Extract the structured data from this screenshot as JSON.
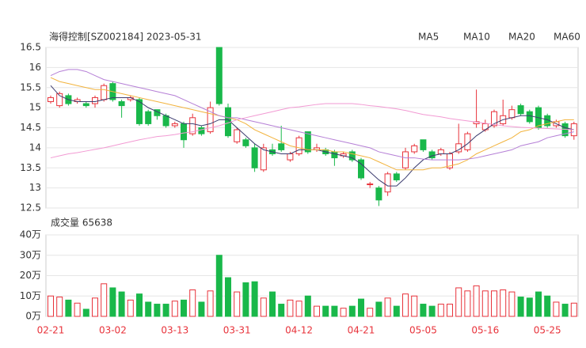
{
  "chart_data": [
    {
      "type": "candlestick",
      "title": "海得控制[SZ002184] 2023-05-31",
      "up_color": "#e8333b",
      "down_color": "#19b84a",
      "open": [
        15.15,
        15.05,
        15.3,
        15.15,
        15.1,
        15.1,
        15.2,
        15.6,
        15.15,
        15.2,
        15.2,
        14.9,
        14.95,
        14.8,
        14.55,
        14.6,
        14.35,
        14.5,
        14.4,
        16.5,
        15.0,
        14.15,
        14.2,
        14.0,
        13.45,
        13.95,
        14.1,
        13.7,
        13.85,
        14.4,
        13.95,
        13.95,
        13.9,
        13.8,
        13.9,
        13.7,
        13.1,
        13.0,
        12.9,
        13.35,
        13.5,
        13.9,
        14.2,
        13.9,
        13.85,
        13.5,
        13.9,
        13.95,
        14.6,
        14.45,
        14.55,
        14.6,
        14.75,
        15.05,
        14.9,
        15.0,
        14.8,
        14.55,
        14.6,
        14.3
      ],
      "high": [
        15.3,
        15.4,
        15.35,
        15.25,
        15.15,
        15.3,
        15.6,
        15.65,
        15.2,
        15.3,
        15.25,
        14.95,
        14.95,
        14.85,
        14.65,
        14.65,
        14.85,
        14.55,
        15.15,
        16.5,
        15.1,
        14.5,
        14.25,
        14.1,
        14.1,
        14.1,
        14.55,
        13.9,
        14.3,
        14.4,
        14.1,
        14.0,
        13.95,
        13.9,
        13.95,
        13.75,
        13.15,
        13.05,
        13.4,
        13.4,
        14.0,
        14.1,
        14.2,
        13.95,
        14.0,
        13.9,
        14.6,
        14.4,
        15.45,
        14.7,
        14.95,
        15.2,
        15.05,
        15.1,
        14.95,
        15.05,
        14.85,
        14.7,
        14.65,
        14.65
      ],
      "low": [
        15.1,
        15.0,
        15.05,
        15.1,
        15.0,
        15.0,
        15.15,
        15.15,
        14.75,
        15.15,
        14.55,
        14.55,
        14.7,
        14.5,
        14.5,
        14.0,
        14.3,
        14.3,
        14.35,
        15.05,
        14.25,
        14.1,
        14.0,
        13.4,
        13.4,
        13.8,
        13.9,
        13.65,
        13.8,
        13.85,
        13.9,
        13.8,
        13.55,
        13.75,
        13.65,
        13.2,
        13.0,
        12.55,
        12.8,
        13.15,
        13.45,
        13.85,
        13.9,
        13.7,
        13.8,
        13.45,
        13.85,
        13.9,
        14.5,
        14.4,
        14.5,
        14.55,
        14.7,
        14.8,
        14.6,
        14.45,
        14.5,
        14.5,
        14.25,
        14.2
      ],
      "close": [
        15.25,
        15.35,
        15.1,
        15.2,
        15.05,
        15.25,
        15.55,
        15.2,
        15.05,
        15.25,
        14.6,
        14.6,
        14.8,
        14.55,
        14.6,
        14.2,
        14.75,
        14.35,
        15.0,
        15.1,
        14.3,
        14.45,
        14.05,
        13.5,
        14.0,
        13.85,
        13.95,
        13.85,
        14.25,
        13.9,
        14.0,
        13.85,
        13.75,
        13.85,
        13.7,
        13.25,
        13.1,
        12.7,
        13.35,
        13.2,
        13.9,
        14.05,
        13.95,
        13.75,
        13.95,
        13.85,
        14.1,
        14.35,
        14.65,
        14.6,
        14.9,
        14.8,
        14.95,
        14.85,
        14.65,
        14.5,
        14.55,
        14.65,
        14.3,
        14.6
      ],
      "series": [
        {
          "name": "MA5",
          "color": "#3b3b6e",
          "values": [
            15.55,
            15.3,
            15.2,
            15.15,
            15.15,
            15.15,
            15.2,
            15.25,
            15.25,
            15.25,
            15.15,
            15.0,
            14.9,
            14.8,
            14.7,
            14.6,
            14.6,
            14.55,
            14.6,
            14.7,
            14.7,
            14.5,
            14.3,
            14.1,
            13.95,
            13.9,
            13.85,
            13.85,
            13.95,
            13.95,
            13.95,
            13.9,
            13.85,
            13.8,
            13.75,
            13.6,
            13.4,
            13.2,
            13.05,
            13.05,
            13.25,
            13.5,
            13.7,
            13.8,
            13.85,
            13.85,
            13.95,
            14.1,
            14.3,
            14.45,
            14.6,
            14.7,
            14.75,
            14.8,
            14.8,
            14.75,
            14.7,
            14.6,
            14.5,
            14.45
          ]
        },
        {
          "name": "MA10",
          "color": "#f2b33d",
          "values": [
            15.75,
            15.65,
            15.6,
            15.55,
            15.5,
            15.45,
            15.45,
            15.4,
            15.35,
            15.3,
            15.25,
            15.2,
            15.15,
            15.1,
            15.05,
            15.0,
            14.95,
            14.9,
            14.85,
            14.8,
            14.75,
            14.7,
            14.6,
            14.45,
            14.35,
            14.25,
            14.15,
            14.05,
            14.0,
            13.95,
            13.95,
            13.95,
            13.9,
            13.9,
            13.85,
            13.8,
            13.75,
            13.65,
            13.55,
            13.45,
            13.45,
            13.45,
            13.45,
            13.5,
            13.5,
            13.55,
            13.6,
            13.7,
            13.85,
            13.95,
            14.05,
            14.15,
            14.25,
            14.4,
            14.45,
            14.55,
            14.6,
            14.65,
            14.7,
            14.7
          ]
        },
        {
          "name": "MA20",
          "color": "#b57fd6",
          "values": [
            15.8,
            15.9,
            15.95,
            15.95,
            15.9,
            15.8,
            15.7,
            15.65,
            15.6,
            15.55,
            15.5,
            15.45,
            15.4,
            15.35,
            15.3,
            15.2,
            15.1,
            15.0,
            14.9,
            14.8,
            14.75,
            14.75,
            14.7,
            14.65,
            14.6,
            14.55,
            14.5,
            14.45,
            14.4,
            14.35,
            14.3,
            14.25,
            14.2,
            14.15,
            14.1,
            14.05,
            14.0,
            13.9,
            13.85,
            13.8,
            13.75,
            13.75,
            13.72,
            13.7,
            13.7,
            13.7,
            13.7,
            13.72,
            13.75,
            13.8,
            13.85,
            13.9,
            13.95,
            14.05,
            14.1,
            14.15,
            14.25,
            14.3,
            14.35,
            14.4
          ]
        },
        {
          "name": "MA60",
          "color": "#f29ad3",
          "values": [
            13.75,
            13.8,
            13.85,
            13.88,
            13.92,
            13.96,
            14.0,
            14.05,
            14.1,
            14.15,
            14.2,
            14.24,
            14.28,
            14.3,
            14.33,
            14.37,
            14.4,
            14.45,
            14.5,
            14.55,
            14.62,
            14.7,
            14.75,
            14.8,
            14.85,
            14.9,
            14.95,
            15.0,
            15.02,
            15.05,
            15.08,
            15.1,
            15.1,
            15.1,
            15.1,
            15.08,
            15.05,
            15.03,
            15.0,
            14.97,
            14.93,
            14.88,
            14.83,
            14.8,
            14.77,
            14.73,
            14.7,
            14.67,
            14.64,
            14.61,
            14.58,
            14.55,
            14.53,
            14.51,
            14.5,
            14.49,
            14.48,
            14.47,
            14.46,
            14.45
          ]
        }
      ],
      "ylim": [
        12.5,
        16.5
      ],
      "yticks": [
        16.5,
        16,
        15.5,
        15,
        14.5,
        14,
        13.5,
        13,
        12.5
      ],
      "grid": true
    },
    {
      "type": "bar",
      "title": "成交量 65638",
      "categories": [
        "02-21",
        null,
        null,
        null,
        null,
        null,
        null,
        "03-02",
        null,
        null,
        null,
        null,
        null,
        null,
        "03-13",
        null,
        null,
        null,
        null,
        null,
        null,
        "03-31",
        null,
        null,
        null,
        null,
        null,
        null,
        "04-12",
        null,
        null,
        null,
        null,
        null,
        null,
        "04-21",
        null,
        null,
        null,
        null,
        null,
        null,
        "05-05",
        null,
        null,
        null,
        null,
        null,
        null,
        "05-16",
        null,
        null,
        null,
        null,
        null,
        null,
        "05-25",
        null,
        null,
        null
      ],
      "values": [
        10,
        9.5,
        8,
        6.5,
        3.5,
        9,
        16,
        14,
        12,
        8,
        11,
        7,
        6,
        6,
        7.5,
        8,
        13,
        7,
        12.5,
        30,
        19,
        12,
        16.5,
        17,
        9,
        12,
        6,
        8,
        7.5,
        10,
        5,
        5,
        5,
        4,
        5,
        8.5,
        4,
        7,
        9,
        5,
        11,
        10,
        6,
        5,
        6,
        6,
        14,
        12.5,
        15,
        12.5,
        12.5,
        13,
        12,
        9.5,
        9,
        12,
        10,
        7,
        6,
        6.5
      ],
      "ylim": [
        0,
        40
      ],
      "yticks": [
        {
          "value": 40,
          "label": "40万"
        },
        {
          "value": 30,
          "label": "30万"
        },
        {
          "value": 20,
          "label": "20万"
        },
        {
          "value": 10,
          "label": "10万"
        },
        {
          "value": 0,
          "label": "0万"
        }
      ],
      "grid": true,
      "category_color": "#e8333b"
    }
  ]
}
